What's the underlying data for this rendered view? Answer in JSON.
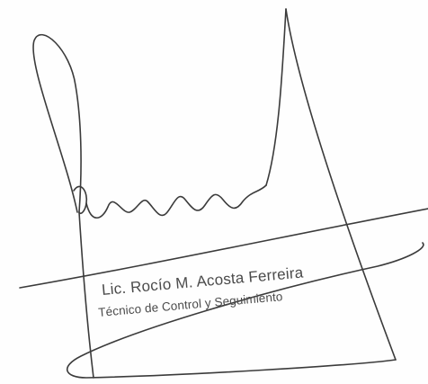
{
  "document": {
    "stamp": {
      "name_line": "Lic. Rocío M. Acosta Ferreira",
      "role_line": "Técnico de Control y Seguimiento"
    },
    "signature": {
      "ink_color": "#3b3b3b"
    }
  }
}
